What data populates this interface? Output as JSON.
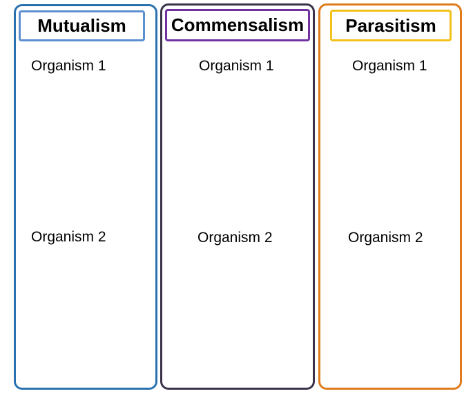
{
  "columns": [
    {
      "title": "Mutualism",
      "organism_1": "Organism 1",
      "organism_2": "Organism 2",
      "border_color": "#2a71b0",
      "title_border_color": "#5b8fd0"
    },
    {
      "title": "Commensalism",
      "organism_1": "Organism 1",
      "organism_2": "Organism 2",
      "border_color": "#3a3248",
      "title_border_color": "#7032a0"
    },
    {
      "title": "Parasitism",
      "organism_1": "Organism 1",
      "organism_2": "Organism 2",
      "border_color": "#e07b1c",
      "title_border_color": "#f2c21a"
    }
  ]
}
